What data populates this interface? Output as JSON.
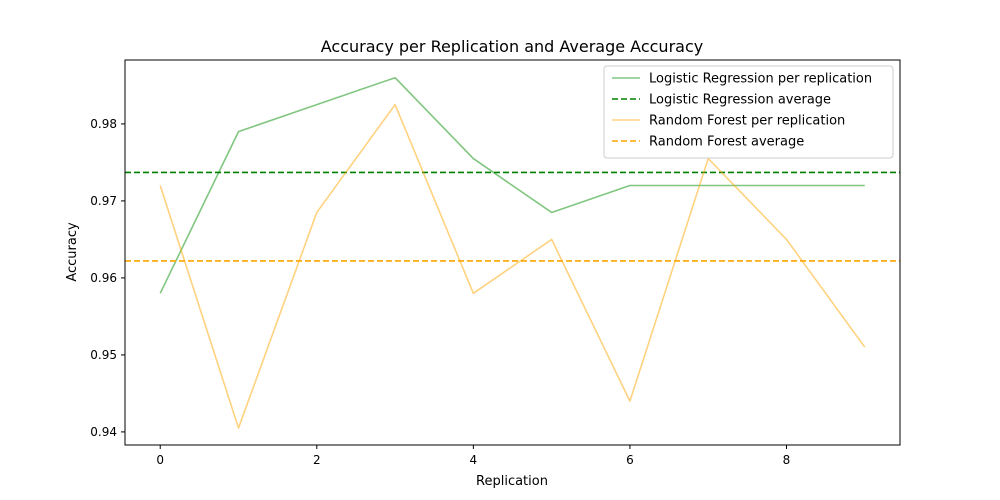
{
  "chart_data": {
    "type": "line",
    "title": "Accuracy per Replication and Average Accuracy",
    "xlabel": "Replication",
    "ylabel": "Accuracy",
    "xlim": [
      -0.45,
      9.45
    ],
    "ylim": [
      0.9383,
      0.9883
    ],
    "xticks": [
      0,
      2,
      4,
      6,
      8
    ],
    "xtick_labels": [
      "0",
      "2",
      "4",
      "6",
      "8"
    ],
    "yticks": [
      0.94,
      0.95,
      0.96,
      0.97,
      0.98
    ],
    "ytick_labels": [
      "0.94",
      "0.95",
      "0.96",
      "0.97",
      "0.98"
    ],
    "grid": false,
    "legend_position": "top-right",
    "x": [
      0,
      1,
      2,
      3,
      4,
      5,
      6,
      7,
      8,
      9
    ],
    "series": [
      {
        "name": "Logistic Regression per replication",
        "kind": "line",
        "color": "#2ca02c",
        "opacity": 0.6,
        "values": [
          0.958,
          0.979,
          0.9825,
          0.986,
          0.9755,
          0.9685,
          0.972,
          0.972,
          0.972,
          0.972
        ]
      },
      {
        "name": "Logistic Regression average",
        "kind": "hline",
        "color": "#008000",
        "value": 0.9737
      },
      {
        "name": "Random Forest per replication",
        "kind": "line",
        "color": "#ffa500",
        "opacity": 0.5,
        "values": [
          0.972,
          0.9405,
          0.9685,
          0.9825,
          0.958,
          0.965,
          0.944,
          0.9755,
          0.965,
          0.951
        ]
      },
      {
        "name": "Random Forest average",
        "kind": "hline",
        "color": "#ffa500",
        "value": 0.9622
      }
    ]
  }
}
